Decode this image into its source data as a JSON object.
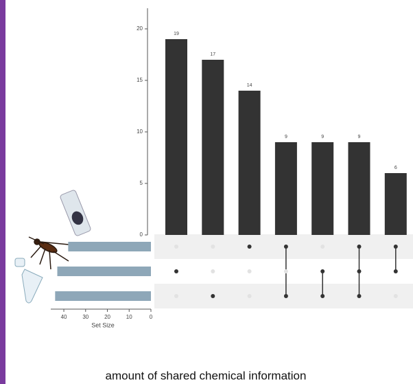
{
  "chart_data": {
    "type": "upset",
    "values": [
      19,
      17,
      14,
      9,
      9,
      9,
      6
    ],
    "color": "#333333",
    "ylim": [
      0,
      22
    ],
    "yticks": [
      0,
      5,
      10,
      15,
      20
    ],
    "matrix": [
      [
        0,
        1,
        0
      ],
      [
        0,
        0,
        1
      ],
      [
        1,
        0,
        0
      ],
      [
        1,
        0,
        1
      ],
      [
        0,
        1,
        1
      ],
      [
        1,
        1,
        1
      ],
      [
        1,
        1,
        0
      ]
    ],
    "set_sizes": [
      38,
      43,
      44
    ],
    "set_color": "#8ea7b8",
    "set_xlim": [
      0,
      46
    ],
    "set_xticks": [
      0,
      10,
      20,
      30,
      40
    ],
    "set_xlabel": "Set Size"
  },
  "caption": "amount of shared chemical information"
}
